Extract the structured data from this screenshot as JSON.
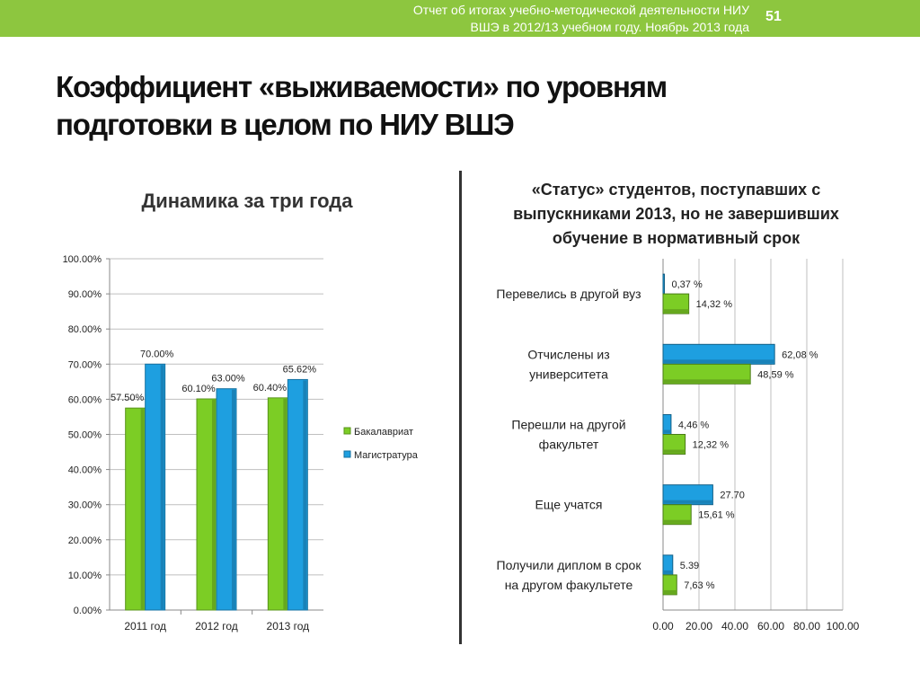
{
  "header": {
    "report_line1": "Отчет об итогах учебно-методической деятельности НИУ",
    "report_line2": "ВШЭ в 2012/13 учебном году. Ноябрь 2013 года",
    "page_number": "51"
  },
  "title": {
    "line1": "Коэффициент «выживаемости» по уровням",
    "line2": "подготовки в целом по НИУ ВШЭ"
  },
  "colors": {
    "green": "#7ccd25",
    "blue": "#1e9fe0",
    "accent": "#8dc63f"
  },
  "chart_data": [
    {
      "type": "bar",
      "title": "Динамика за три года",
      "categories": [
        "2011 год",
        "2012 год",
        "2013 год"
      ],
      "y_ticks": [
        "0.00%",
        "10.00%",
        "20.00%",
        "30.00%",
        "40.00%",
        "50.00%",
        "60.00%",
        "70.00%",
        "80.00%",
        "90.00%",
        "100.00%"
      ],
      "ylim": [
        0,
        100
      ],
      "grid": true,
      "legend_position": "right",
      "series": [
        {
          "name": "Бакалавриат",
          "values": [
            57.5,
            60.1,
            60.4
          ],
          "labels": [
            "57.50%",
            "60.10%",
            "60.40%"
          ],
          "color": "#7ccd25"
        },
        {
          "name": "Магистратура",
          "values": [
            70.0,
            63.0,
            65.62
          ],
          "labels": [
            "70.00%",
            "63.00%",
            "65.62%"
          ],
          "color": "#1e9fe0"
        }
      ]
    },
    {
      "type": "bar",
      "orientation": "horizontal",
      "title_lines": [
        "«Статус» студентов, поступавших с",
        "выпускниками 2013, но не завершивших",
        "обучение в нормативный срок"
      ],
      "x_ticks": [
        "0.00",
        "20.00",
        "40.00",
        "60.00",
        "80.00",
        "100.00"
      ],
      "xlim": [
        0,
        100
      ],
      "grid": true,
      "categories": [
        {
          "lines": [
            "Перевелись в другой вуз"
          ]
        },
        {
          "lines": [
            "Отчислены из",
            "университета"
          ]
        },
        {
          "lines": [
            "Перешли на другой",
            "факультет"
          ]
        },
        {
          "lines": [
            "Еще учатся"
          ]
        },
        {
          "lines": [
            "Получили диплом в срок",
            "на другом факультете"
          ]
        }
      ],
      "series": [
        {
          "values": [
            0.37,
            62.08,
            4.46,
            27.7,
            5.39
          ],
          "labels": [
            "0,37 %",
            "62,08 %",
            "4,46 %",
            "27.70",
            "5.39"
          ],
          "color": "#1e9fe0"
        },
        {
          "values": [
            14.32,
            48.59,
            12.32,
            15.61,
            7.63
          ],
          "labels": [
            "14,32 %",
            "48,59 %",
            "12,32 %",
            "15,61 %",
            "7,63 %"
          ],
          "color": "#7ccd25"
        }
      ]
    }
  ]
}
